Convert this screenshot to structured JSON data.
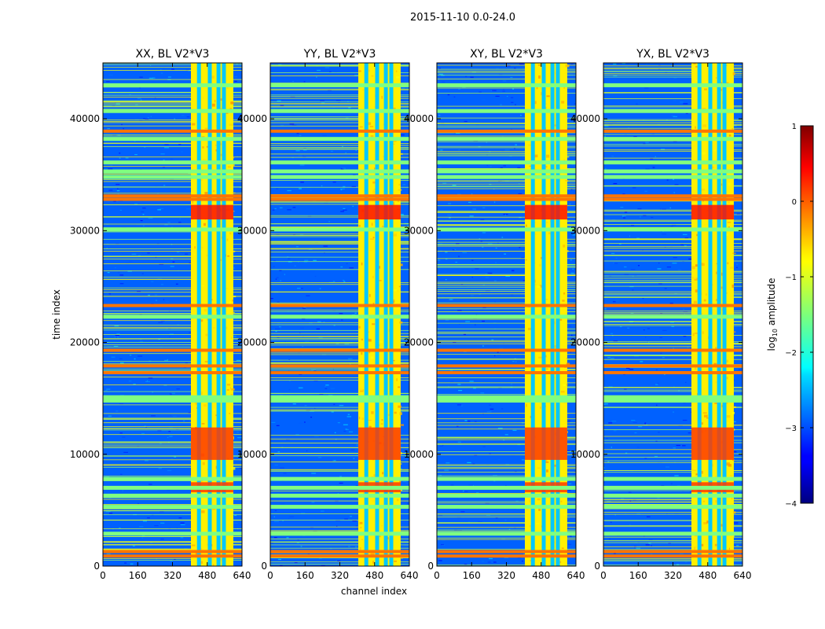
{
  "chart_data": {
    "type": "heatmap",
    "title": "2015-11-10 0.0-24.0",
    "xlabel": "channel index",
    "ylabel": "time index",
    "xlim": [
      0,
      640
    ],
    "ylim": [
      0,
      45000
    ],
    "x_ticks": [
      "0",
      "160",
      "320",
      "480",
      "640"
    ],
    "y_ticks": [
      "0",
      "10000",
      "20000",
      "30000",
      "40000"
    ],
    "panels": [
      {
        "title": "XX, BL V2*V3"
      },
      {
        "title": "YY, BL V2*V3"
      },
      {
        "title": "XY, BL V2*V3"
      },
      {
        "title": "YX, BL V2*V3"
      }
    ],
    "colorbar": {
      "label": "log10 amplitude",
      "label_main": "log",
      "label_sub": "10",
      "label_rest": " amplitude",
      "range": [
        -4,
        1
      ],
      "ticks": [
        "1",
        "0",
        "−1",
        "−2",
        "−3",
        "−4"
      ],
      "colormap": "jet"
    },
    "features": {
      "bright_band_x": [
        405,
        600
      ],
      "gap_channels": [
        440,
        490,
        530,
        555
      ],
      "background_level": -2.9,
      "band_level": -0.8,
      "saturated_rows": [
        900,
        1300,
        17300,
        17900,
        19300,
        23300,
        32800,
        33100,
        38900
      ],
      "flagged_rows": [
        2900,
        5300,
        6300,
        7000,
        7800,
        14800,
        15100,
        22300,
        30100,
        34800,
        35300,
        36100,
        38200,
        40700,
        43000
      ],
      "intense_regions": [
        {
          "t": [
            31000,
            32300
          ],
          "level": 0.3
        },
        {
          "t": [
            9500,
            12400
          ],
          "level": 0.1
        },
        {
          "t": [
            6600,
            7500
          ],
          "level": 0.1
        }
      ]
    }
  }
}
